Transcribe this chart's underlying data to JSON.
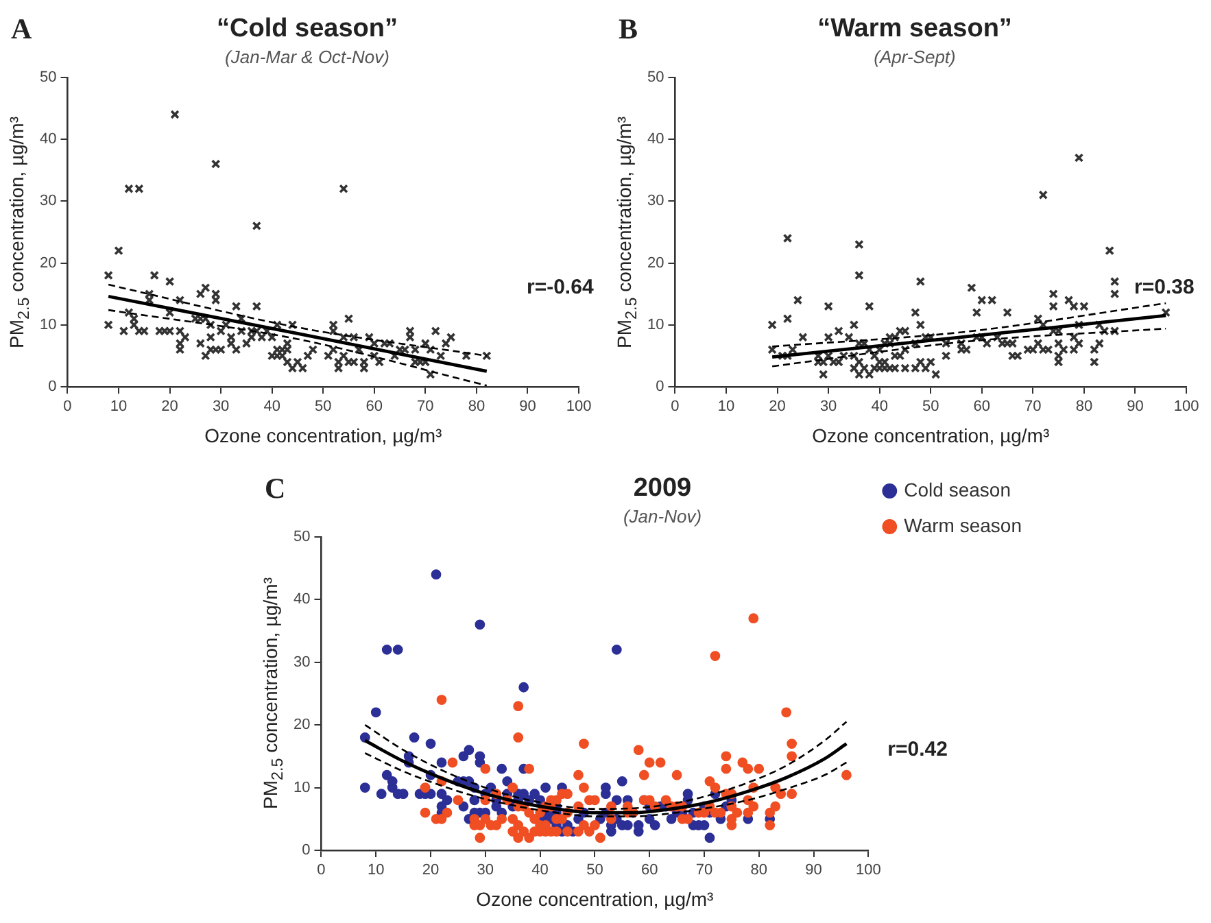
{
  "chart_data": [
    {
      "type": "scatter",
      "title": "“Cold season”",
      "subtitle": "(Jan-Mar & Oct-Nov)",
      "xlabel": "Ozone concentration, µg/m³",
      "ylabel": "PM$_{2.5}$ concentration, µg/m³",
      "xlim": [
        0,
        100
      ],
      "xticks": [
        0,
        10,
        20,
        30,
        40,
        50,
        60,
        70,
        80,
        90,
        100
      ],
      "ylim": [
        0,
        50
      ],
      "yticks": [
        0,
        10,
        20,
        30,
        40,
        50
      ],
      "grid": false,
      "legend": false,
      "annotations": [
        "A",
        "r=-0.64"
      ],
      "series": [
        {
          "marker": "cross",
          "color": "#333333",
          "x": [
            8,
            8,
            10,
            11,
            12,
            12,
            13,
            13,
            14,
            14,
            15,
            16,
            16,
            17,
            18,
            19,
            20,
            20,
            20,
            21,
            22,
            22,
            22,
            22,
            23,
            25,
            26,
            26,
            26,
            27,
            27,
            27,
            28,
            28,
            28,
            29,
            29,
            29,
            29,
            30,
            30,
            31,
            32,
            32,
            33,
            33,
            34,
            34,
            35,
            36,
            36,
            37,
            37,
            37,
            38,
            39,
            40,
            40,
            41,
            41,
            41,
            42,
            42,
            43,
            43,
            43,
            44,
            44,
            45,
            46,
            47,
            48,
            51,
            52,
            52,
            52,
            53,
            53,
            54,
            54,
            54,
            55,
            55,
            56,
            56,
            57,
            58,
            58,
            59,
            60,
            60,
            61,
            62,
            63,
            64,
            65,
            66,
            67,
            67,
            68,
            68,
            69,
            70,
            70,
            71,
            71,
            72,
            73,
            74,
            75,
            78,
            82
          ],
          "values": [
            18,
            10,
            22,
            9,
            12,
            32,
            11,
            10,
            32,
            9,
            9,
            14,
            15,
            18,
            9,
            9,
            9,
            17,
            12,
            44,
            9,
            14,
            7,
            6,
            8,
            11,
            11,
            15,
            7,
            16,
            11,
            5,
            10,
            8,
            6,
            15,
            14,
            36,
            6,
            6,
            9,
            10,
            8,
            7,
            13,
            6,
            11,
            9,
            7,
            8,
            9,
            13,
            26,
            9,
            8,
            9,
            5,
            8,
            10,
            6,
            5,
            6,
            5,
            6,
            7,
            4,
            10,
            3,
            4,
            3,
            5,
            6,
            5,
            9,
            10,
            6,
            4,
            3,
            32,
            8,
            5,
            11,
            4,
            8,
            4,
            6,
            3,
            4,
            8,
            7,
            5,
            4,
            7,
            7,
            5,
            6,
            6,
            9,
            8,
            4,
            6,
            4,
            7,
            4,
            2,
            6,
            9,
            5,
            7,
            8,
            5,
            5
          ]
        },
        {
          "type": "line",
          "marker": "none",
          "color": "#000000",
          "x": [
            8,
            45,
            82
          ],
          "values": [
            14.6,
            8.6,
            2.5
          ]
        },
        {
          "type": "line",
          "marker": "none",
          "line_style": "dashed",
          "color": "#000000",
          "x": [
            8,
            45,
            82
          ],
          "values": [
            16.5,
            9.6,
            5
          ]
        },
        {
          "type": "line",
          "marker": "none",
          "line_style": "dashed",
          "color": "#000000",
          "x": [
            8,
            45,
            82
          ],
          "values": [
            12.4,
            7.7,
            0.2
          ]
        }
      ]
    },
    {
      "type": "scatter",
      "title": "“Warm season”",
      "subtitle": "(Apr-Sept)",
      "xlabel": "Ozone concentration, µg/m³",
      "ylabel": "PM$_{2.5}$ concentration, µg/m³",
      "xlim": [
        0,
        100
      ],
      "xticks": [
        0,
        10,
        20,
        30,
        40,
        50,
        60,
        70,
        80,
        90,
        100
      ],
      "ylim": [
        0,
        50
      ],
      "yticks": [
        0,
        10,
        20,
        30,
        40,
        50
      ],
      "grid": false,
      "legend": false,
      "annotations": [
        "B",
        "r=0.38"
      ],
      "series": [
        {
          "marker": "cross",
          "color": "#333333",
          "x": [
            19,
            19,
            21,
            22,
            22,
            22,
            23,
            24,
            25,
            28,
            28,
            29,
            29,
            30,
            30,
            30,
            31,
            32,
            32,
            33,
            34,
            35,
            35,
            35,
            36,
            36,
            36,
            36,
            36,
            38,
            37,
            37,
            38,
            38,
            39,
            39,
            40,
            40,
            40,
            41,
            41,
            41,
            42,
            42,
            42,
            43,
            43,
            43,
            44,
            44,
            45,
            45,
            45,
            47,
            47,
            47,
            48,
            48,
            48,
            49,
            49,
            50,
            50,
            51,
            53,
            53,
            56,
            56,
            57,
            58,
            59,
            59,
            60,
            60,
            61,
            62,
            63,
            64,
            65,
            65,
            66,
            66,
            67,
            69,
            70,
            71,
            71,
            72,
            72,
            72,
            73,
            74,
            74,
            74,
            75,
            75,
            75,
            75,
            76,
            77,
            78,
            78,
            78,
            79,
            79,
            79,
            80,
            82,
            82,
            83,
            83,
            84,
            85,
            86,
            86,
            86,
            96
          ],
          "values": [
            10,
            6,
            5,
            24,
            11,
            5,
            6,
            14,
            8,
            4,
            5,
            2,
            4,
            13,
            8,
            5,
            4,
            9,
            4,
            5,
            8,
            10,
            5,
            3,
            23,
            18,
            7,
            2,
            4,
            13,
            7,
            3,
            6,
            2,
            5,
            3,
            6,
            4,
            3,
            7,
            3,
            4,
            8,
            7,
            3,
            8,
            5,
            3,
            9,
            5,
            9,
            3,
            6,
            12,
            7,
            3,
            17,
            10,
            4,
            8,
            3,
            8,
            4,
            2,
            7,
            5,
            7,
            6,
            6,
            16,
            12,
            8,
            14,
            8,
            7,
            14,
            8,
            7,
            12,
            7,
            7,
            5,
            5,
            6,
            6,
            11,
            7,
            31,
            10,
            6,
            6,
            15,
            13,
            9,
            9,
            7,
            5,
            4,
            6,
            14,
            13,
            8,
            6,
            37,
            10,
            7,
            13,
            6,
            4,
            10,
            7,
            9,
            22,
            17,
            15,
            9,
            12
          ]
        },
        {
          "type": "line",
          "marker": "none",
          "color": "#000000",
          "x": [
            19,
            57,
            96
          ],
          "values": [
            4.8,
            8.1,
            11.5
          ]
        },
        {
          "type": "line",
          "marker": "none",
          "line_style": "dashed",
          "color": "#000000",
          "x": [
            19,
            57,
            96
          ],
          "values": [
            6.5,
            8.9,
            13.5
          ]
        },
        {
          "type": "line",
          "marker": "none",
          "line_style": "dashed",
          "color": "#000000",
          "x": [
            19,
            57,
            96
          ],
          "values": [
            3.3,
            7.3,
            9.4
          ]
        }
      ]
    },
    {
      "type": "scatter",
      "title": "2009",
      "subtitle": "(Jan-Nov)",
      "xlabel": "Ozone concentration, µg/m³",
      "ylabel": "PM$_{2.5}$ concentration, µg/m³",
      "xlim": [
        0,
        100
      ],
      "xticks": [
        0,
        10,
        20,
        30,
        40,
        50,
        60,
        70,
        80,
        90,
        100
      ],
      "ylim": [
        0,
        50
      ],
      "yticks": [
        0,
        10,
        20,
        30,
        40,
        50
      ],
      "grid": false,
      "legend": "top right",
      "annotations": [
        "C",
        "r=0.42"
      ],
      "series": [
        {
          "name": "Cold season",
          "marker": "circle",
          "color": "#2b2f96",
          "x": [
            8,
            8,
            10,
            11,
            12,
            12,
            13,
            13,
            14,
            14,
            15,
            16,
            16,
            17,
            18,
            19,
            20,
            20,
            20,
            21,
            22,
            22,
            22,
            22,
            23,
            25,
            26,
            26,
            26,
            27,
            27,
            27,
            28,
            28,
            28,
            29,
            29,
            29,
            29,
            30,
            30,
            31,
            32,
            32,
            33,
            33,
            34,
            34,
            35,
            36,
            36,
            37,
            37,
            37,
            38,
            39,
            40,
            40,
            41,
            41,
            41,
            42,
            42,
            43,
            43,
            43,
            44,
            44,
            45,
            46,
            47,
            48,
            51,
            52,
            52,
            52,
            53,
            53,
            54,
            54,
            54,
            55,
            55,
            56,
            56,
            57,
            58,
            58,
            59,
            60,
            60,
            61,
            62,
            63,
            64,
            65,
            66,
            67,
            67,
            68,
            68,
            69,
            70,
            70,
            71,
            71,
            72,
            73,
            74,
            75,
            78,
            82
          ],
          "values": [
            18,
            10,
            22,
            9,
            12,
            32,
            11,
            10,
            32,
            9,
            9,
            14,
            15,
            18,
            9,
            9,
            9,
            17,
            12,
            44,
            9,
            14,
            7,
            6,
            8,
            11,
            11,
            15,
            7,
            16,
            11,
            5,
            10,
            8,
            6,
            15,
            14,
            36,
            6,
            6,
            9,
            10,
            8,
            7,
            13,
            6,
            11,
            9,
            7,
            8,
            9,
            13,
            26,
            9,
            8,
            9,
            5,
            8,
            10,
            6,
            5,
            6,
            5,
            6,
            7,
            4,
            10,
            3,
            4,
            3,
            5,
            6,
            5,
            9,
            10,
            6,
            4,
            3,
            32,
            8,
            5,
            11,
            4,
            8,
            4,
            6,
            3,
            4,
            8,
            7,
            5,
            4,
            7,
            7,
            5,
            6,
            6,
            9,
            8,
            4,
            6,
            4,
            7,
            4,
            2,
            6,
            9,
            5,
            7,
            8,
            5,
            5
          ]
        },
        {
          "name": "Warm season",
          "marker": "circle",
          "color": "#f04e23",
          "x": [
            19,
            19,
            21,
            22,
            22,
            22,
            23,
            24,
            25,
            28,
            28,
            29,
            29,
            30,
            30,
            30,
            31,
            32,
            32,
            33,
            34,
            35,
            35,
            35,
            36,
            36,
            36,
            36,
            36,
            38,
            37,
            37,
            38,
            38,
            39,
            39,
            40,
            40,
            40,
            41,
            41,
            41,
            42,
            42,
            42,
            43,
            43,
            43,
            44,
            44,
            45,
            45,
            45,
            47,
            47,
            47,
            48,
            48,
            48,
            49,
            49,
            50,
            50,
            51,
            53,
            53,
            56,
            56,
            57,
            58,
            59,
            59,
            60,
            60,
            61,
            62,
            63,
            64,
            65,
            65,
            66,
            66,
            67,
            69,
            70,
            71,
            71,
            72,
            72,
            72,
            73,
            74,
            74,
            74,
            75,
            75,
            75,
            75,
            76,
            77,
            78,
            78,
            78,
            79,
            79,
            79,
            80,
            82,
            82,
            83,
            83,
            84,
            85,
            86,
            86,
            86,
            96
          ],
          "values": [
            10,
            6,
            5,
            24,
            11,
            5,
            6,
            14,
            8,
            4,
            5,
            2,
            4,
            13,
            8,
            5,
            4,
            9,
            4,
            5,
            8,
            10,
            5,
            3,
            23,
            18,
            7,
            2,
            4,
            13,
            7,
            3,
            6,
            2,
            5,
            3,
            6,
            4,
            3,
            7,
            3,
            4,
            8,
            7,
            3,
            8,
            5,
            3,
            9,
            5,
            9,
            3,
            6,
            12,
            7,
            3,
            17,
            10,
            4,
            8,
            3,
            8,
            4,
            2,
            7,
            5,
            7,
            6,
            6,
            16,
            12,
            8,
            14,
            8,
            7,
            14,
            8,
            7,
            12,
            7,
            7,
            5,
            5,
            6,
            6,
            11,
            7,
            31,
            10,
            6,
            6,
            15,
            13,
            9,
            9,
            7,
            5,
            4,
            6,
            14,
            13,
            8,
            6,
            37,
            10,
            7,
            13,
            6,
            4,
            10,
            7,
            9,
            22,
            17,
            15,
            9,
            12
          ]
        },
        {
          "type": "line",
          "marker": "none",
          "color": "#000000",
          "x": [
            8,
            15,
            22,
            29,
            36,
            43,
            50,
            57,
            64,
            71,
            78,
            85,
            92,
            96
          ],
          "values": [
            17.5,
            14.2,
            11.5,
            9.3,
            7.7,
            6.6,
            6,
            6,
            6.6,
            7.7,
            9.4,
            11.6,
            14.6,
            17
          ]
        },
        {
          "type": "line",
          "marker": "none",
          "line_style": "dashed",
          "color": "#000000",
          "x": [
            8,
            15,
            22,
            29,
            36,
            43,
            50,
            57,
            64,
            71,
            78,
            85,
            92,
            96
          ],
          "values": [
            20,
            16,
            12.8,
            10.3,
            8.4,
            7.2,
            6.6,
            6.7,
            7.4,
            8.8,
            10.8,
            13.5,
            17.5,
            20.5
          ]
        },
        {
          "type": "line",
          "marker": "none",
          "line_style": "dashed",
          "color": "#000000",
          "x": [
            8,
            15,
            22,
            29,
            36,
            43,
            50,
            57,
            64,
            71,
            78,
            85,
            92,
            96
          ],
          "values": [
            15.5,
            12.6,
            10.3,
            8.4,
            7,
            6,
            5.4,
            5.4,
            5.9,
            6.8,
            8,
            9.8,
            12,
            14
          ]
        }
      ]
    }
  ]
}
